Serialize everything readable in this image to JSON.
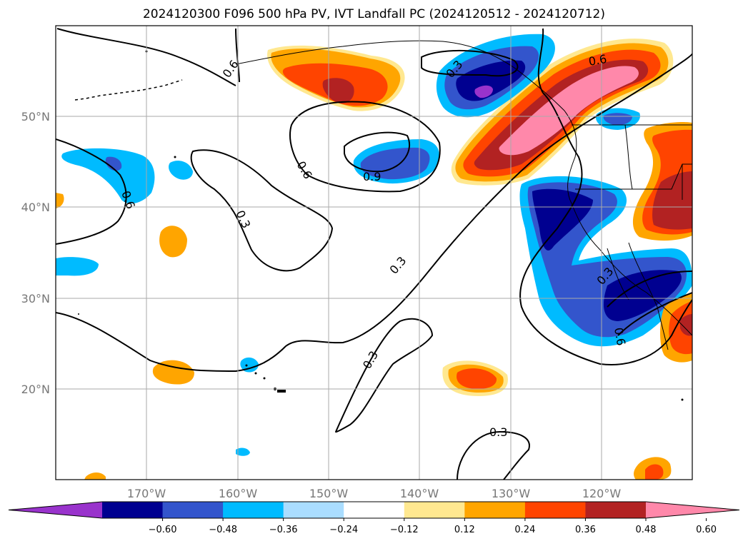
{
  "title": "2024120300 F096 500 hPa PV, IVT Landfall PC (2024120512 - 2024120712)",
  "lat_labels": [
    "50°N",
    "40°N",
    "30°N",
    "20°N"
  ],
  "lon_labels": [
    "170°W",
    "160°W",
    "150°W",
    "140°W",
    "130°W",
    "120°W"
  ],
  "contour_labels": [
    "0.6",
    "0.3",
    "0.6",
    "0.9",
    "0.6",
    "0.6",
    "0.3",
    "0.3",
    "0.3",
    "0.3",
    "0.6",
    "0.3"
  ],
  "colorbar": {
    "colors": [
      "#9933cc",
      "#000090",
      "#3355cc",
      "#00bbff",
      "#aaddff",
      "#ffffff",
      "#ffe890",
      "#ffa500",
      "#ff4400",
      "#b22222",
      "#ff88aa"
    ],
    "tick_labels": [
      "−0.60",
      "−0.48",
      "−0.36",
      "−0.24",
      "−0.12",
      "0.12",
      "0.24",
      "0.36",
      "0.48",
      "0.60"
    ]
  },
  "colors": {
    "grid": "#aaaaaa",
    "axis_label": "#777777",
    "contour": "#000000"
  }
}
